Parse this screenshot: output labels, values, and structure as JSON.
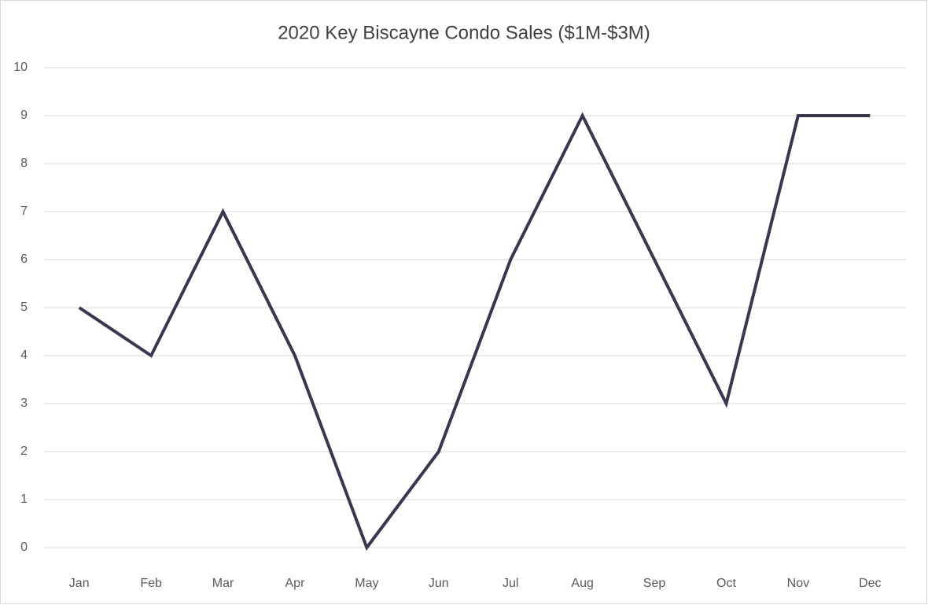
{
  "chart_data": {
    "type": "line",
    "title": "2020 Key Biscayne Condo Sales ($1M-$3M)",
    "categories": [
      "Jan",
      "Feb",
      "Mar",
      "Apr",
      "May",
      "Jun",
      "Jul",
      "Aug",
      "Sep",
      "Oct",
      "Nov",
      "Dec"
    ],
    "values": [
      5,
      4,
      7,
      4,
      0,
      2,
      6,
      9,
      6,
      3,
      9,
      9
    ],
    "color": "#3b3551",
    "ylim": [
      0,
      10
    ],
    "yticks": [
      0,
      1,
      2,
      3,
      4,
      5,
      6,
      7,
      8,
      9,
      10
    ],
    "grid": true
  }
}
